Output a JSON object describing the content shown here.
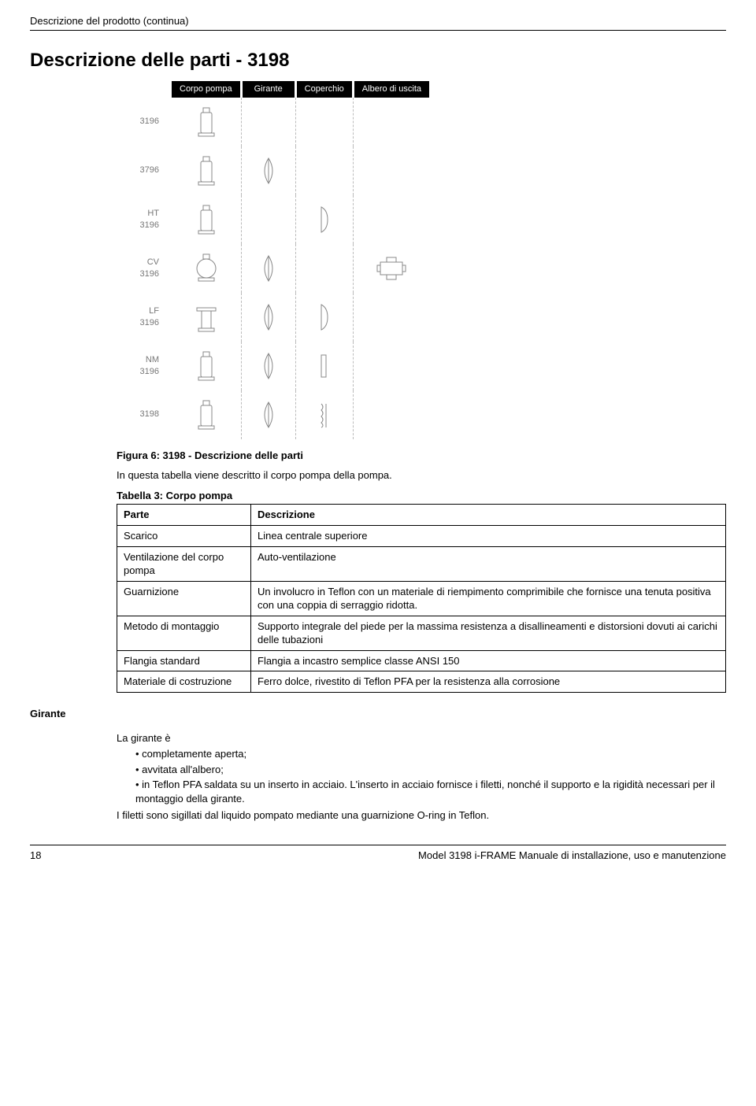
{
  "header": {
    "running": "Descrizione del prodotto (continua)"
  },
  "title": "Descrizione delle parti - 3198",
  "diagram": {
    "columns": [
      "Corpo pompa",
      "Girante",
      "Coperchio",
      "Albero di uscita"
    ],
    "row_labels": [
      "3196",
      "3796",
      "HT 3196",
      "CV 3196",
      "LF 3196",
      "NM 3196",
      "3198"
    ],
    "header_bg": "#000000",
    "header_fg": "#ffffff",
    "label_color": "#777777",
    "dash_color": "#bbbbbb",
    "icon_stroke": "#888888"
  },
  "figure": {
    "caption": "Figura 6: 3198 - Descrizione delle parti",
    "intro": "In questa tabella viene descritto il corpo pompa della pompa.",
    "table_title": "Tabella 3: Corpo pompa",
    "columns": [
      "Parte",
      "Descrizione"
    ],
    "rows": [
      [
        "Scarico",
        "Linea centrale superiore"
      ],
      [
        "Ventilazione del corpo pompa",
        "Auto-ventilazione"
      ],
      [
        "Guarnizione",
        "Un involucro in Teflon con un materiale di riempimento comprimibile che fornisce una tenuta positiva con una coppia di serraggio ridotta."
      ],
      [
        "Metodo di montaggio",
        "Supporto integrale del piede per la massima resistenza a disallineamenti e distorsioni dovuti ai carichi delle tubazioni"
      ],
      [
        "Flangia standard",
        "Flangia a incastro semplice classe ANSI 150"
      ],
      [
        "Materiale di costruzione",
        "Ferro dolce, rivestito di Teflon PFA per la resistenza alla corrosione"
      ]
    ]
  },
  "girante": {
    "heading": "Girante",
    "lead": "La girante è",
    "bullets": [
      "completamente aperta;",
      "avvitata all'albero;",
      "in Teflon PFA saldata su un inserto in acciaio. L'inserto in acciaio fornisce i filetti, nonché il supporto e la rigidità necessari per il montaggio della girante."
    ],
    "trailing": "I filetti sono sigillati dal liquido pompato mediante una guarnizione O-ring in Teflon."
  },
  "footer": {
    "page": "18",
    "doc": "Model 3198 i-FRAME Manuale di installazione, uso e manutenzione"
  }
}
